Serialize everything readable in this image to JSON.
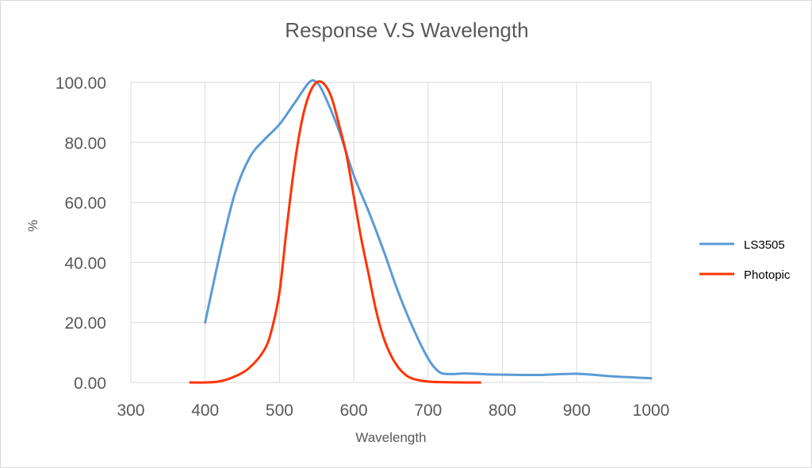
{
  "chart_data": {
    "type": "line",
    "title": "Response V.S Wavelength",
    "xlabel": "Wavelength",
    "ylabel": "%",
    "xlim": [
      300,
      1000
    ],
    "ylim": [
      0,
      100
    ],
    "x_ticks": [
      300,
      400,
      500,
      600,
      700,
      800,
      900,
      1000
    ],
    "y_ticks": [
      0,
      20,
      40,
      60,
      80,
      100
    ],
    "y_tick_labels": [
      "0.00",
      "20.00",
      "40.00",
      "60.00",
      "80.00",
      "100.00"
    ],
    "x_tick_labels": [
      "300",
      "400",
      "500",
      "600",
      "700",
      "800",
      "900",
      "1000"
    ],
    "grid": true,
    "legend_position": "right",
    "series": [
      {
        "name": "LS3505",
        "color": "#5b9bd5",
        "points": [
          [
            400,
            20
          ],
          [
            420,
            43
          ],
          [
            440,
            63
          ],
          [
            460,
            75
          ],
          [
            480,
            81
          ],
          [
            500,
            86
          ],
          [
            520,
            93
          ],
          [
            540,
            100
          ],
          [
            550,
            100
          ],
          [
            560,
            96
          ],
          [
            580,
            84
          ],
          [
            600,
            69
          ],
          [
            620,
            57
          ],
          [
            640,
            44
          ],
          [
            660,
            30
          ],
          [
            680,
            18
          ],
          [
            700,
            8
          ],
          [
            715,
            3.5
          ],
          [
            730,
            2.8
          ],
          [
            750,
            3
          ],
          [
            780,
            2.7
          ],
          [
            800,
            2.6
          ],
          [
            850,
            2.5
          ],
          [
            900,
            2.9
          ],
          [
            950,
            2
          ],
          [
            1000,
            1.4
          ]
        ]
      },
      {
        "name": "Photopic",
        "color": "#ff3300",
        "points": [
          [
            380,
            0
          ],
          [
            400,
            0
          ],
          [
            420,
            0.4
          ],
          [
            440,
            2
          ],
          [
            460,
            5
          ],
          [
            480,
            11
          ],
          [
            490,
            18
          ],
          [
            500,
            30
          ],
          [
            510,
            52
          ],
          [
            520,
            72
          ],
          [
            530,
            87
          ],
          [
            540,
            96
          ],
          [
            550,
            100
          ],
          [
            560,
            99.5
          ],
          [
            570,
            95
          ],
          [
            580,
            86
          ],
          [
            590,
            76
          ],
          [
            600,
            62
          ],
          [
            610,
            48
          ],
          [
            620,
            36
          ],
          [
            630,
            24
          ],
          [
            640,
            15
          ],
          [
            650,
            9
          ],
          [
            660,
            5
          ],
          [
            670,
            2.5
          ],
          [
            680,
            1.2
          ],
          [
            700,
            0.3
          ],
          [
            720,
            0.1
          ],
          [
            750,
            0
          ],
          [
            770,
            0
          ]
        ]
      }
    ]
  }
}
